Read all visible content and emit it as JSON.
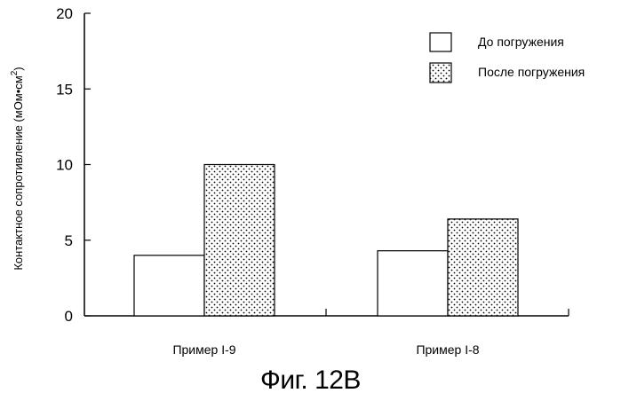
{
  "chart_data": {
    "type": "bar",
    "categories": [
      "Пример I-9",
      "Пример I-8"
    ],
    "series": [
      {
        "name": "До погружения",
        "values": [
          4.0,
          4.3
        ],
        "fill": "#ffffff"
      },
      {
        "name": "После погружения",
        "values": [
          10.0,
          6.4
        ],
        "fill": "dotted"
      }
    ],
    "ylabel_text": "Контактное сопротивление (мОм•см",
    "ylabel_sup": "2",
    "ylabel_close": ")",
    "ylim": [
      0,
      20
    ],
    "yticks": [
      0,
      5,
      10,
      15,
      20
    ],
    "legend_position": "top-right",
    "grid": false
  },
  "caption": "Фиг. 12B"
}
